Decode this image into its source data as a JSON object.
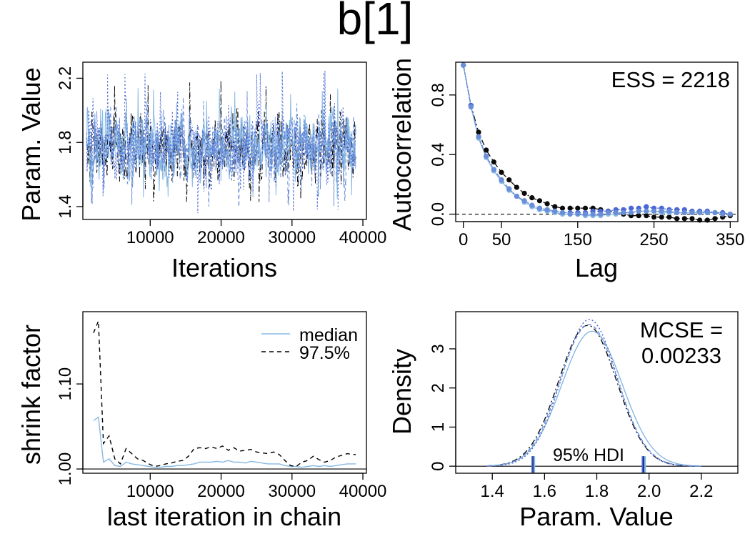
{
  "figure": {
    "title": "b[1]"
  },
  "colors": {
    "chain1": "#0b0b0b",
    "chain2": "#87b9e3",
    "chain3": "#4a67d6",
    "chain4": "#6a8fd8"
  },
  "chart_data": [
    {
      "id": "trace",
      "type": "line",
      "xlabel": "Iterations",
      "ylabel": "Param. Value",
      "xlim": [
        500,
        40500
      ],
      "ylim": [
        1.32,
        2.3
      ],
      "xticks": [
        10000,
        20000,
        30000,
        40000
      ],
      "xtick_labels": [
        "10000",
        "20000",
        "30000",
        "40000"
      ],
      "yticks": [
        1.4,
        1.8,
        2.2
      ],
      "ytick_labels": [
        "1.4",
        "1.8",
        "2.2"
      ],
      "x_range": [
        1000,
        39000
      ],
      "mean": 1.775,
      "sd": 0.11,
      "series": [
        {
          "chain": 1,
          "min": 1.42,
          "max": 2.19
        },
        {
          "chain": 2,
          "min": 1.45,
          "max": 2.15
        },
        {
          "chain": 3,
          "min": 1.35,
          "max": 2.25
        },
        {
          "chain": 4,
          "min": 1.4,
          "max": 2.12
        }
      ]
    },
    {
      "id": "autocorr",
      "type": "line",
      "xlabel": "Lag",
      "ylabel": "Autocorrelation",
      "xlim": [
        -10,
        360
      ],
      "ylim": [
        -0.05,
        1.02
      ],
      "xticks": [
        0,
        50,
        150,
        250,
        350
      ],
      "xtick_labels": [
        "0",
        "50",
        "150",
        "250",
        "350"
      ],
      "yticks": [
        0.0,
        0.4,
        0.8
      ],
      "ytick_labels": [
        "0.0",
        "0.4",
        "0.8"
      ],
      "annotation": "ESS = 2218",
      "lags": [
        0,
        10,
        20,
        30,
        40,
        50,
        60,
        70,
        80,
        90,
        100,
        110,
        120,
        130,
        140,
        150,
        160,
        170,
        180,
        190,
        200,
        210,
        220,
        230,
        240,
        250,
        260,
        270,
        280,
        290,
        300,
        310,
        320,
        330,
        340,
        350
      ],
      "series": [
        {
          "chain": 1,
          "values": [
            1.0,
            0.73,
            0.55,
            0.43,
            0.35,
            0.28,
            0.23,
            0.18,
            0.14,
            0.11,
            0.09,
            0.07,
            0.05,
            0.04,
            0.04,
            0.04,
            0.04,
            0.04,
            0.03,
            0.02,
            0.01,
            0.0,
            -0.01,
            -0.01,
            -0.01,
            -0.02,
            -0.02,
            -0.02,
            -0.03,
            -0.03,
            -0.03,
            -0.04,
            -0.04,
            -0.03,
            -0.02,
            -0.01
          ]
        },
        {
          "chain": 2,
          "values": [
            1.0,
            0.72,
            0.51,
            0.38,
            0.29,
            0.22,
            0.16,
            0.12,
            0.08,
            0.05,
            0.03,
            0.02,
            0.01,
            0.0,
            0.0,
            0.0,
            -0.01,
            -0.01,
            -0.01,
            0.0,
            0.0,
            0.01,
            0.01,
            0.02,
            0.02,
            0.02,
            0.01,
            0.01,
            0.01,
            0.01,
            0.01,
            0.01,
            0.01,
            0.01,
            0.01,
            0.0
          ]
        },
        {
          "chain": 3,
          "values": [
            1.0,
            0.73,
            0.52,
            0.39,
            0.3,
            0.23,
            0.17,
            0.12,
            0.09,
            0.06,
            0.04,
            0.03,
            0.02,
            0.01,
            0.01,
            0.01,
            0.01,
            0.02,
            0.02,
            0.02,
            0.03,
            0.03,
            0.04,
            0.04,
            0.05,
            0.04,
            0.04,
            0.03,
            0.03,
            0.03,
            0.02,
            0.02,
            0.02,
            0.01,
            0.01,
            0.0
          ]
        },
        {
          "chain": 4,
          "values": [
            1.0,
            0.72,
            0.52,
            0.39,
            0.3,
            0.23,
            0.17,
            0.12,
            0.09,
            0.06,
            0.04,
            0.03,
            0.02,
            0.01,
            0.0,
            0.0,
            0.0,
            0.0,
            0.0,
            0.01,
            0.01,
            0.01,
            0.01,
            0.02,
            0.02,
            0.02,
            0.02,
            0.02,
            0.01,
            0.01,
            0.01,
            0.01,
            0.01,
            0.01,
            0.0,
            0.0
          ]
        }
      ]
    },
    {
      "id": "shrink",
      "type": "line",
      "xlabel": "last iteration in chain",
      "ylabel": "shrink factor",
      "xlim": [
        500,
        40500
      ],
      "ylim": [
        0.995,
        1.185
      ],
      "xticks": [
        10000,
        20000,
        30000,
        40000
      ],
      "xtick_labels": [
        "10000",
        "20000",
        "30000",
        "40000"
      ],
      "yticks": [
        1.0,
        1.1
      ],
      "ytick_labels": [
        "1.00",
        "1.10"
      ],
      "legend": {
        "position": "top-right",
        "items": [
          "median",
          "97.5%"
        ]
      },
      "x": [
        2000,
        2700,
        3400,
        4200,
        5000,
        5800,
        6600,
        7400,
        8200,
        9000,
        9800,
        10600,
        11400,
        12200,
        13000,
        13800,
        14600,
        15400,
        16200,
        17000,
        17800,
        18600,
        19400,
        20200,
        21000,
        21800,
        22600,
        23400,
        24200,
        25000,
        25800,
        26600,
        27400,
        28200,
        29000,
        29800,
        30600,
        31400,
        32200,
        33000,
        33800,
        34600,
        35400,
        36200,
        37000,
        37800,
        38600,
        39000
      ],
      "series": [
        {
          "name": "median",
          "values": [
            1.057,
            1.061,
            1.008,
            1.012,
            1.004,
            1.003,
            1.008,
            1.006,
            1.005,
            1.004,
            1.003,
            1.002,
            1.002,
            1.003,
            1.003,
            1.004,
            1.004,
            1.005,
            1.006,
            1.008,
            1.008,
            1.008,
            1.009,
            1.008,
            1.01,
            1.008,
            1.008,
            1.007,
            1.009,
            1.008,
            1.007,
            1.006,
            1.006,
            1.006,
            1.004,
            1.003,
            1.003,
            1.002,
            1.003,
            1.004,
            1.003,
            1.004,
            1.003,
            1.004,
            1.005,
            1.006,
            1.006,
            1.006
          ]
        },
        {
          "name": "97.5%",
          "values": [
            1.16,
            1.174,
            1.03,
            1.039,
            1.012,
            1.006,
            1.024,
            1.018,
            1.012,
            1.01,
            1.006,
            1.003,
            1.004,
            1.006,
            1.007,
            1.009,
            1.01,
            1.015,
            1.024,
            1.025,
            1.024,
            1.026,
            1.024,
            1.027,
            1.022,
            1.025,
            1.021,
            1.022,
            1.023,
            1.02,
            1.019,
            1.018,
            1.02,
            1.017,
            1.01,
            1.004,
            1.003,
            1.008,
            1.01,
            1.015,
            1.011,
            1.008,
            1.01,
            1.014,
            1.016,
            1.018,
            1.017,
            1.017
          ]
        }
      ]
    },
    {
      "id": "density",
      "type": "line",
      "xlabel": "Param. Value",
      "ylabel": "Density",
      "xlim": [
        1.26,
        2.34
      ],
      "ylim": [
        -0.18,
        3.95
      ],
      "xticks": [
        1.4,
        1.6,
        1.8,
        2.0,
        2.2
      ],
      "xtick_labels": [
        "1.4",
        "1.6",
        "1.8",
        "2.0",
        "2.2"
      ],
      "yticks": [
        0,
        1,
        2,
        3
      ],
      "ytick_labels": [
        "0",
        "1",
        "2",
        "3"
      ],
      "annotation": [
        "MCSE =",
        "0.00233"
      ],
      "hdi_label": "95% HDI",
      "hdi_low": [
        1.553,
        1.557,
        1.561
      ],
      "hdi_high": [
        1.975,
        1.98,
        1.985
      ],
      "series": [
        {
          "chain": 1,
          "mean": 1.765,
          "peak": 3.6
        },
        {
          "chain": 2,
          "mean": 1.782,
          "peak": 3.45
        },
        {
          "chain": 3,
          "mean": 1.772,
          "peak": 3.75
        },
        {
          "chain": 4,
          "mean": 1.77,
          "peak": 3.62
        }
      ]
    }
  ]
}
